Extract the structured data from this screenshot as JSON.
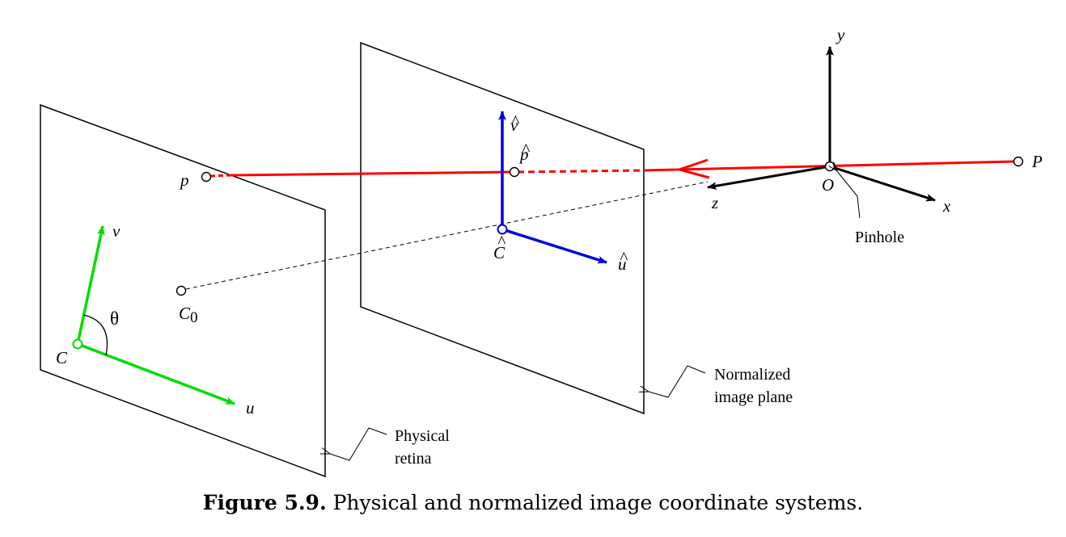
{
  "figure": {
    "labels": {
      "origin": "O",
      "x_axis": "x",
      "y_axis": "y",
      "z_axis": "z",
      "scene_point": "P",
      "pinhole": "Pinhole",
      "normalized_point": "p",
      "normalized_center": "C",
      "normalized_u": "u",
      "normalized_v": "v",
      "hat_mark": "^",
      "physical_point": "p",
      "physical_center": "C",
      "principal_point": "C",
      "principal_point_subscript": "0",
      "physical_u": "u",
      "physical_v": "v",
      "angle": "θ",
      "normalized_plane_line1": "Normalized",
      "normalized_plane_line2": "image plane",
      "physical_retina_line1": "Physical",
      "physical_retina_line2": "retina"
    },
    "colors": {
      "ray": "#ff0000",
      "normalized_axes": "#0000dd",
      "physical_axes": "#00dd00",
      "camera_axes": "#000000",
      "plane_outline": "#000000"
    }
  },
  "caption": {
    "label": "Figure 5.9.",
    "text": "Physical and normalized image coordinate systems."
  }
}
